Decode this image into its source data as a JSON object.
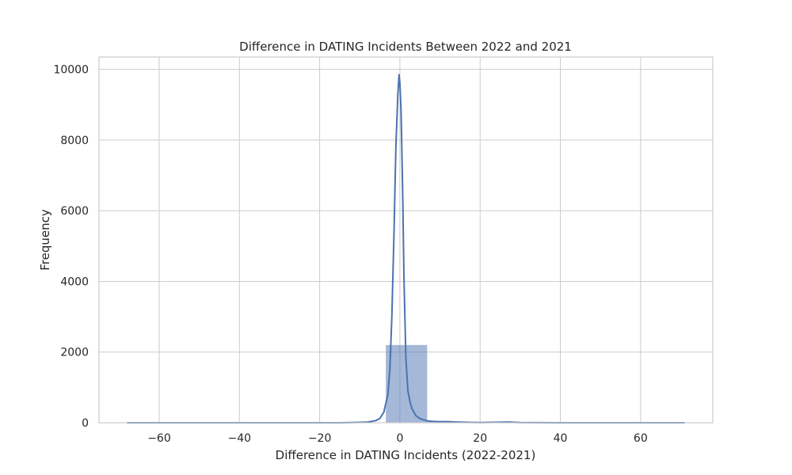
{
  "chart_data": {
    "type": "bar",
    "title": "Difference in DATING Incidents Between 2022 and 2021",
    "xlabel": "Difference in DATING Incidents (2022-2021)",
    "ylabel": "Frequency",
    "xlim": [
      -75,
      78
    ],
    "ylim": [
      0,
      10350
    ],
    "xticks": [
      -60,
      -40,
      -20,
      0,
      20,
      40,
      60
    ],
    "xtick_labels": [
      "−60",
      "−40",
      "−20",
      "0",
      "20",
      "40",
      "60"
    ],
    "yticks": [
      0,
      2000,
      4000,
      6000,
      8000,
      10000
    ],
    "ytick_labels": [
      "0",
      "2000",
      "4000",
      "6000",
      "8000",
      "10000"
    ],
    "grid": true,
    "histogram": {
      "bin_edges": [
        -68,
        -57,
        -46,
        -35,
        -24,
        -13,
        -3.5,
        6.8,
        17,
        27,
        38,
        49,
        60,
        71
      ],
      "counts": [
        3,
        1,
        1,
        1,
        2,
        10,
        2200,
        40,
        12,
        2,
        1,
        1,
        2
      ],
      "color": "#4c72b0",
      "alpha": 0.5
    },
    "kde": {
      "color": "#4c72b0",
      "x": [
        -68,
        -60,
        -50,
        -40,
        -30,
        -20,
        -15,
        -12,
        -10,
        -8,
        -6,
        -5,
        -4,
        -3,
        -2.5,
        -2,
        -1.5,
        -1,
        -0.5,
        -0.2,
        0,
        0.3,
        0.7,
        1,
        1.5,
        2,
        2.5,
        3,
        4,
        5,
        6,
        7,
        8,
        10,
        12,
        14,
        16,
        20,
        25,
        27,
        30,
        40,
        50,
        60,
        71
      ],
      "y": [
        0,
        0,
        0,
        0,
        0,
        0,
        0,
        5,
        10,
        20,
        60,
        120,
        300,
        800,
        1500,
        3000,
        5200,
        7800,
        9300,
        9850,
        9600,
        8800,
        6500,
        4200,
        1800,
        900,
        600,
        400,
        200,
        120,
        80,
        50,
        40,
        30,
        30,
        20,
        10,
        5,
        15,
        20,
        5,
        0,
        0,
        0,
        0
      ]
    }
  }
}
